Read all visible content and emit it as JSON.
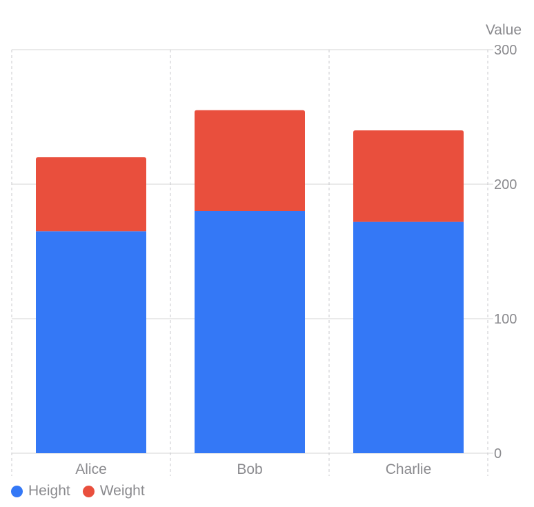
{
  "chart_data": {
    "type": "bar",
    "stacked": true,
    "categories": [
      "Alice",
      "Bob",
      "Charlie"
    ],
    "series": [
      {
        "name": "Height",
        "values": [
          165,
          180,
          172
        ],
        "color": "#3478F6"
      },
      {
        "name": "Weight",
        "values": [
          55,
          75,
          68
        ],
        "color": "#E94F3D"
      }
    ],
    "ylabel": "Value",
    "ylim": [
      0,
      300
    ],
    "yticks": [
      "0",
      "100",
      "200",
      "300"
    ],
    "y_axis_position": "right",
    "grid": true,
    "legend_position": "bottom-left"
  }
}
